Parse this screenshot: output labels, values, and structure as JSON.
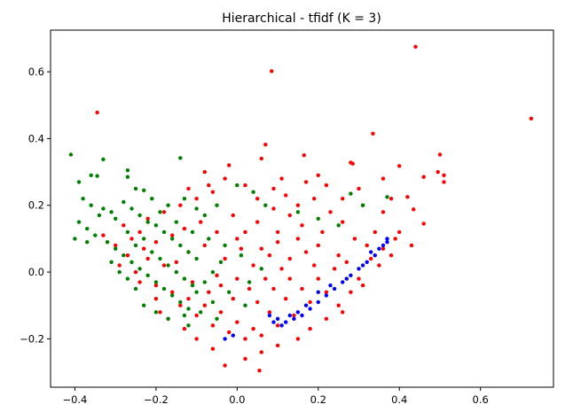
{
  "chart_data": {
    "type": "scatter",
    "title": "Hierarchical - tfidf (K = 3)",
    "xlabel": "",
    "ylabel": "",
    "xlim": [
      -0.46,
      0.78
    ],
    "ylim": [
      -0.345,
      0.725
    ],
    "x_ticks": [
      -0.4,
      -0.2,
      0.0,
      0.2,
      0.4,
      0.6
    ],
    "x_tick_labels": [
      "−0.4",
      "−0.2",
      "0.0",
      "0.2",
      "0.4",
      "0.6"
    ],
    "y_ticks": [
      -0.2,
      0.0,
      0.2,
      0.4,
      0.6
    ],
    "y_tick_labels": [
      "−0.2",
      "0.0",
      "0.2",
      "0.4",
      "0.6"
    ],
    "grid": false,
    "legend": "none",
    "series": [
      {
        "color": "#ff0000",
        "points": [
          [
            0.44,
            0.675
          ],
          [
            0.725,
            0.46
          ],
          [
            0.085,
            0.602
          ],
          [
            -0.345,
            0.478
          ],
          [
            0.335,
            0.415
          ],
          [
            0.28,
            0.328
          ],
          [
            0.285,
            0.325
          ],
          [
            0.5,
            0.352
          ],
          [
            0.4,
            0.318
          ],
          [
            0.495,
            0.3
          ],
          [
            0.51,
            0.29
          ],
          [
            0.51,
            0.27
          ],
          [
            0.46,
            0.285
          ],
          [
            0.435,
            0.188
          ],
          [
            0.46,
            0.145
          ],
          [
            0.42,
            0.225
          ],
          [
            0.07,
            0.382
          ],
          [
            0.165,
            0.35
          ],
          [
            0.06,
            0.34
          ],
          [
            -0.02,
            0.32
          ],
          [
            -0.08,
            0.3
          ],
          [
            0.2,
            0.29
          ],
          [
            0.36,
            0.28
          ],
          [
            0.38,
            0.22
          ],
          [
            0.3,
            0.25
          ],
          [
            0.31,
            0.2
          ],
          [
            0.36,
            0.18
          ],
          [
            0.34,
            0.12
          ],
          [
            0.39,
            0.1
          ],
          [
            0.36,
            0.07
          ],
          [
            0.33,
            0.04
          ],
          [
            0.3,
            -0.02
          ],
          [
            0.28,
            -0.06
          ],
          [
            0.25,
            -0.1
          ],
          [
            0.22,
            -0.14
          ],
          [
            0.18,
            -0.17
          ],
          [
            0.15,
            -0.2
          ],
          [
            0.1,
            -0.22
          ],
          [
            0.06,
            -0.24
          ],
          [
            0.02,
            -0.26
          ],
          [
            -0.03,
            -0.28
          ],
          [
            0.055,
            -0.295
          ],
          [
            -0.06,
            -0.23
          ],
          [
            -0.1,
            -0.2
          ],
          [
            -0.13,
            -0.17
          ],
          [
            -0.17,
            -0.14
          ],
          [
            -0.19,
            -0.12
          ],
          [
            -0.2,
            -0.08
          ],
          [
            -0.27,
            0.05
          ],
          [
            -0.3,
            0.08
          ],
          [
            -0.24,
            0.12
          ],
          [
            -0.28,
            0.14
          ],
          [
            -0.22,
            0.16
          ],
          [
            -0.18,
            0.18
          ],
          [
            -0.14,
            0.2
          ],
          [
            -0.1,
            0.22
          ],
          [
            -0.06,
            0.24
          ],
          [
            -0.03,
            0.28
          ],
          [
            0.02,
            0.26
          ],
          [
            0.05,
            0.22
          ],
          [
            0.09,
            0.25
          ],
          [
            0.12,
            0.23
          ],
          [
            0.15,
            0.2
          ],
          [
            0.19,
            0.22
          ],
          [
            0.23,
            0.18
          ],
          [
            0.26,
            0.15
          ],
          [
            0.29,
            0.1
          ],
          [
            0.32,
            0.08
          ],
          [
            0.25,
            0.05
          ],
          [
            0.2,
            0.08
          ],
          [
            0.15,
            0.1
          ],
          [
            0.1,
            0.12
          ],
          [
            0.05,
            0.15
          ],
          [
            0.0,
            0.1
          ],
          [
            -0.05,
            0.12
          ],
          [
            -0.08,
            0.08
          ],
          [
            -0.12,
            0.06
          ],
          [
            -0.15,
            0.03
          ],
          [
            -0.18,
            0.02
          ],
          [
            -0.22,
            0.04
          ],
          [
            -0.25,
            0.0
          ],
          [
            -0.2,
            -0.04
          ],
          [
            -0.16,
            -0.06
          ],
          [
            -0.12,
            -0.08
          ],
          [
            -0.08,
            -0.1
          ],
          [
            -0.04,
            -0.12
          ],
          [
            0.0,
            -0.15
          ],
          [
            0.04,
            -0.17
          ],
          [
            0.08,
            -0.12
          ],
          [
            0.12,
            -0.08
          ],
          [
            0.16,
            -0.05
          ],
          [
            0.2,
            -0.02
          ],
          [
            0.24,
            0.01
          ],
          [
            0.27,
            0.03
          ],
          [
            0.22,
            -0.06
          ],
          [
            0.18,
            -0.09
          ],
          [
            0.14,
            -0.13
          ],
          [
            0.1,
            -0.16
          ],
          [
            0.06,
            -0.19
          ],
          [
            0.02,
            -0.2
          ],
          [
            -0.02,
            -0.18
          ],
          [
            -0.06,
            -0.16
          ],
          [
            -0.1,
            -0.13
          ],
          [
            -0.14,
            -0.1
          ],
          [
            0.03,
            -0.05
          ],
          [
            0.07,
            -0.02
          ],
          [
            0.11,
            0.01
          ],
          [
            0.13,
            0.04
          ],
          [
            0.17,
            0.06
          ],
          [
            0.08,
            0.05
          ],
          [
            0.04,
            0.02
          ],
          [
            0.0,
            -0.02
          ],
          [
            -0.04,
            -0.04
          ],
          [
            -0.07,
            -0.06
          ],
          [
            -0.11,
            -0.03
          ],
          [
            -0.03,
            0.04
          ],
          [
            0.06,
            0.07
          ],
          [
            0.16,
            0.14
          ],
          [
            0.21,
            0.12
          ],
          [
            0.13,
            0.17
          ],
          [
            0.09,
            0.19
          ],
          [
            -0.01,
            0.17
          ],
          [
            -0.09,
            0.15
          ],
          [
            -0.16,
            0.11
          ],
          [
            -0.2,
            0.09
          ],
          [
            -0.23,
            0.07
          ],
          [
            -0.26,
            0.1
          ],
          [
            -0.33,
            0.11
          ],
          [
            -0.29,
            0.02
          ],
          [
            -0.24,
            -0.03
          ],
          [
            0.26,
            -0.12
          ],
          [
            0.31,
            -0.04
          ],
          [
            0.35,
            0.02
          ],
          [
            0.38,
            0.05
          ],
          [
            0.4,
            0.12
          ],
          [
            0.43,
            0.08
          ],
          [
            0.26,
            0.22
          ],
          [
            0.22,
            0.26
          ],
          [
            0.17,
            0.27
          ],
          [
            0.11,
            0.28
          ],
          [
            -0.07,
            0.26
          ],
          [
            -0.12,
            0.25
          ],
          [
            -0.13,
            0.13
          ],
          [
            0.01,
            0.07
          ],
          [
            0.05,
            -0.09
          ],
          [
            0.09,
            -0.05
          ],
          [
            0.13,
            -0.02
          ],
          [
            0.19,
            0.02
          ],
          [
            -0.01,
            -0.08
          ],
          [
            -0.05,
            -0.01
          ],
          [
            0.02,
            0.12
          ],
          [
            0.1,
            0.09
          ]
        ]
      },
      {
        "color": "#008000",
        "points": [
          [
            -0.41,
            0.352
          ],
          [
            -0.33,
            0.338
          ],
          [
            -0.14,
            0.342
          ],
          [
            -0.36,
            0.29
          ],
          [
            -0.345,
            0.288
          ],
          [
            -0.27,
            0.285
          ],
          [
            -0.27,
            0.305
          ],
          [
            -0.25,
            0.25
          ],
          [
            -0.23,
            0.245
          ],
          [
            -0.39,
            0.27
          ],
          [
            -0.38,
            0.22
          ],
          [
            -0.36,
            0.2
          ],
          [
            -0.33,
            0.19
          ],
          [
            -0.31,
            0.18
          ],
          [
            -0.28,
            0.21
          ],
          [
            -0.26,
            0.19
          ],
          [
            -0.24,
            0.17
          ],
          [
            -0.22,
            0.15
          ],
          [
            -0.2,
            0.14
          ],
          [
            -0.18,
            0.12
          ],
          [
            -0.16,
            0.1
          ],
          [
            -0.14,
            0.08
          ],
          [
            -0.12,
            0.06
          ],
          [
            -0.1,
            0.04
          ],
          [
            -0.39,
            0.15
          ],
          [
            -0.37,
            0.13
          ],
          [
            -0.35,
            0.11
          ],
          [
            -0.32,
            0.09
          ],
          [
            -0.3,
            0.07
          ],
          [
            -0.28,
            0.05
          ],
          [
            -0.26,
            0.03
          ],
          [
            -0.24,
            0.01
          ],
          [
            -0.22,
            -0.01
          ],
          [
            -0.2,
            -0.03
          ],
          [
            -0.18,
            -0.05
          ],
          [
            -0.16,
            -0.07
          ],
          [
            -0.14,
            -0.09
          ],
          [
            -0.12,
            -0.11
          ],
          [
            -0.1,
            -0.06
          ],
          [
            -0.08,
            -0.03
          ],
          [
            -0.06,
            0.0
          ],
          [
            -0.04,
            0.03
          ],
          [
            -0.3,
            0.16
          ],
          [
            -0.34,
            0.17
          ],
          [
            -0.37,
            0.09
          ],
          [
            -0.4,
            0.1
          ],
          [
            -0.27,
            0.12
          ],
          [
            -0.25,
            0.08
          ],
          [
            -0.23,
            0.1
          ],
          [
            -0.21,
            0.06
          ],
          [
            -0.19,
            0.04
          ],
          [
            -0.17,
            0.02
          ],
          [
            -0.15,
            0.0
          ],
          [
            -0.13,
            -0.02
          ],
          [
            -0.11,
            -0.04
          ],
          [
            -0.25,
            -0.05
          ],
          [
            -0.23,
            -0.1
          ],
          [
            -0.2,
            -0.12
          ],
          [
            -0.17,
            -0.14
          ],
          [
            -0.13,
            -0.13
          ],
          [
            -0.27,
            -0.02
          ],
          [
            -0.29,
            0.0
          ],
          [
            -0.31,
            0.03
          ],
          [
            -0.19,
            0.18
          ],
          [
            -0.17,
            0.2
          ],
          [
            -0.13,
            0.22
          ],
          [
            -0.1,
            0.19
          ],
          [
            -0.08,
            0.17
          ],
          [
            -0.05,
            0.2
          ],
          [
            0.0,
            0.26
          ],
          [
            0.04,
            0.24
          ],
          [
            0.07,
            0.2
          ],
          [
            0.28,
            0.235
          ],
          [
            0.31,
            0.2
          ],
          [
            0.37,
            0.225
          ],
          [
            0.15,
            0.18
          ],
          [
            0.2,
            0.16
          ],
          [
            0.25,
            0.14
          ],
          [
            -0.21,
            0.22
          ],
          [
            -0.15,
            0.15
          ],
          [
            -0.11,
            0.12
          ],
          [
            -0.07,
            0.1
          ],
          [
            -0.03,
            0.08
          ],
          [
            0.01,
            0.05
          ],
          [
            0.06,
            0.01
          ],
          [
            0.03,
            -0.03
          ],
          [
            -0.02,
            -0.06
          ],
          [
            -0.06,
            -0.09
          ],
          [
            -0.09,
            -0.12
          ],
          [
            -0.12,
            -0.16
          ],
          [
            -0.05,
            -0.14
          ],
          [
            0.02,
            -0.1
          ]
        ]
      },
      {
        "color": "#0000ff",
        "points": [
          [
            0.37,
            0.1
          ],
          [
            0.37,
            0.09
          ],
          [
            0.35,
            0.07
          ],
          [
            0.34,
            0.05
          ],
          [
            0.32,
            0.03
          ],
          [
            0.3,
            0.01
          ],
          [
            0.28,
            -0.01
          ],
          [
            0.26,
            -0.03
          ],
          [
            0.24,
            -0.05
          ],
          [
            0.22,
            -0.07
          ],
          [
            0.2,
            -0.09
          ],
          [
            0.18,
            -0.11
          ],
          [
            0.16,
            -0.13
          ],
          [
            0.14,
            -0.14
          ],
          [
            0.12,
            -0.15
          ],
          [
            0.1,
            -0.14
          ],
          [
            0.09,
            -0.15
          ],
          [
            0.11,
            -0.16
          ],
          [
            0.13,
            -0.13
          ],
          [
            0.08,
            -0.13
          ],
          [
            0.15,
            -0.12
          ],
          [
            0.17,
            -0.1
          ],
          [
            -0.03,
            -0.2
          ],
          [
            -0.01,
            -0.19
          ],
          [
            0.2,
            -0.06
          ],
          [
            0.23,
            -0.04
          ],
          [
            0.27,
            -0.02
          ],
          [
            0.31,
            0.02
          ],
          [
            0.33,
            0.06
          ],
          [
            0.36,
            0.08
          ]
        ]
      }
    ]
  }
}
